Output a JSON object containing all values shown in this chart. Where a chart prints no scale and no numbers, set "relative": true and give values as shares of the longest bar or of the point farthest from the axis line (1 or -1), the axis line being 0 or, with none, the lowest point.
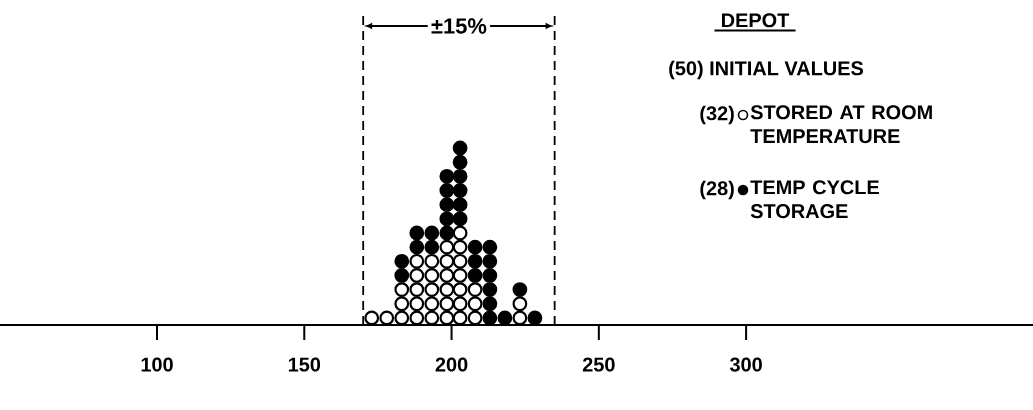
{
  "chart_data": {
    "type": "scatter",
    "relative": true,
    "legend_title": "DEPOT",
    "legend": "top right",
    "marker": "circle",
    "tick_labels": "x",
    "annotations": [
      "±15%",
      "(50) INITIAL VALUES",
      "(32)",
      "(28)"
    ],
    "xlim": [
      46.7,
      397.4
    ],
    "xticks": [
      100,
      150,
      200,
      250,
      300
    ],
    "ref_lines": [
      {
        "axis": "x",
        "value": 170,
        "color": "#000000",
        "line_style": "dashed"
      },
      {
        "axis": "x",
        "value": 235,
        "color": "#000000",
        "line_style": "dashed"
      }
    ],
    "series": [
      {
        "name": "STORED AT ROOM TEMPERATURE",
        "color": "#ffffff",
        "x": [
          172.9,
          178,
          183.1,
          183.1,
          183.1,
          188.2,
          188.2,
          188.2,
          188.2,
          188.2,
          193.3,
          193.3,
          193.3,
          193.3,
          193.3,
          198.4,
          198.4,
          198.4,
          198.4,
          198.4,
          198.4,
          202.9,
          202.9,
          202.9,
          202.9,
          202.9,
          202.9,
          202.9,
          208,
          208,
          208,
          223.2,
          223.2
        ],
        "values": [
          0.04,
          0.04,
          0.04,
          0.12,
          0.2,
          0.04,
          0.12,
          0.2,
          0.28,
          0.36,
          0.04,
          0.12,
          0.2,
          0.28,
          0.36,
          0.04,
          0.12,
          0.2,
          0.28,
          0.36,
          0.44,
          0.04,
          0.12,
          0.2,
          0.28,
          0.36,
          0.44,
          0.52,
          0.04,
          0.12,
          0.2,
          0.04,
          0.12
        ]
      },
      {
        "name": "TEMP CYCLE STORAGE",
        "color": "#000000",
        "x": [
          183.1,
          183.1,
          188.2,
          188.2,
          193.3,
          193.3,
          198.4,
          198.4,
          198.4,
          198.4,
          198.4,
          202.9,
          202.9,
          202.9,
          202.9,
          202.9,
          202.9,
          208,
          208,
          208,
          213,
          213,
          213,
          213,
          213,
          213,
          218.1,
          223.2,
          228.3
        ],
        "values": [
          0.28,
          0.36,
          0.44,
          0.52,
          0.44,
          0.52,
          0.52,
          0.6,
          0.68,
          0.76,
          0.84,
          0.6,
          0.68,
          0.76,
          0.84,
          0.92,
          1.0,
          0.28,
          0.36,
          0.44,
          0.04,
          0.12,
          0.2,
          0.28,
          0.36,
          0.44,
          0.04,
          0.2,
          0.04
        ]
      }
    ]
  }
}
